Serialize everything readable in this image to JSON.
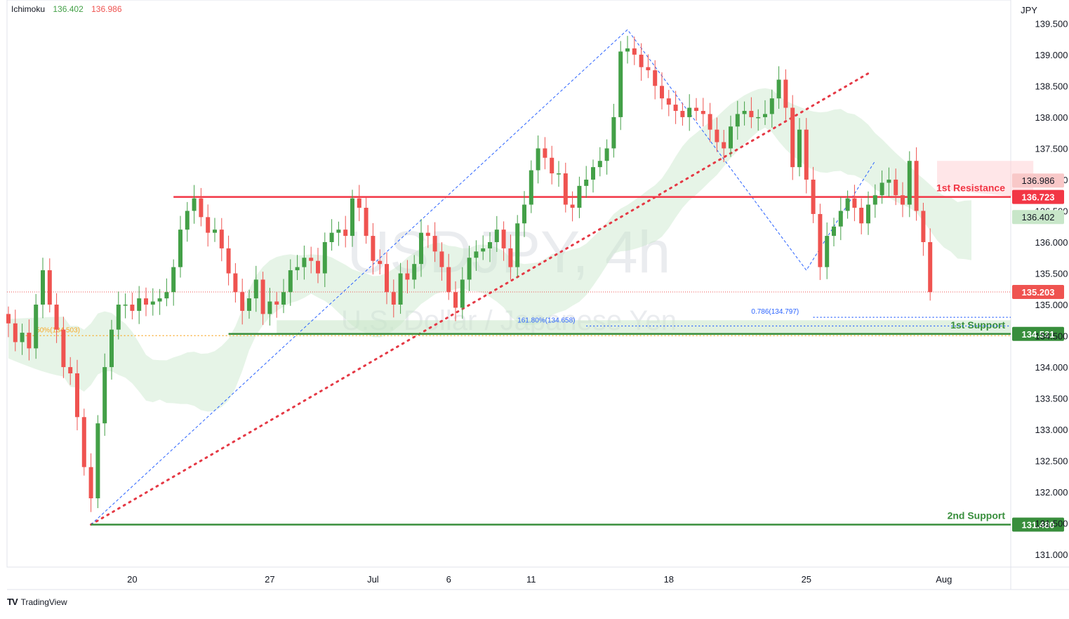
{
  "indicator": {
    "name": "Ichimoku",
    "value_a": "136.402",
    "value_b": "136.986"
  },
  "axis_currency": "JPY",
  "watermark": {
    "symbol": "USDJPY, 4h",
    "description": "U.S. Dollar / Japanese Yen"
  },
  "branding": "TradingView",
  "colors": {
    "bull": "#26a69a",
    "bull_candle": "#43a047",
    "bear": "#ef5350",
    "resistance": "#f23645",
    "support": "#388e3c",
    "cloud_green": "#c8e6c9",
    "cloud_red": "#ffcdd2",
    "trend": "#e53945",
    "fib": "#2962ff"
  },
  "chart_data": {
    "type": "candlestick",
    "ylim": [
      130.8,
      139.65
    ],
    "y_ticks": [
      "139.500",
      "139.000",
      "138.500",
      "138.000",
      "137.500",
      "137.000",
      "136.500",
      "136.000",
      "135.500",
      "135.000",
      "134.500",
      "134.000",
      "133.500",
      "133.000",
      "132.500",
      "132.000",
      "131.500",
      "131.000"
    ],
    "x_labels": [
      {
        "label": "20",
        "i": 18
      },
      {
        "label": "27",
        "i": 38
      },
      {
        "label": "Jul",
        "i": 53
      },
      {
        "label": "6",
        "i": 64
      },
      {
        "label": "11",
        "i": 76
      },
      {
        "label": "18",
        "i": 96
      },
      {
        "label": "25",
        "i": 116
      },
      {
        "label": "Aug",
        "i": 136
      }
    ],
    "closes": [
      134.7,
      134.4,
      134.55,
      134.3,
      135.0,
      135.55,
      135.0,
      134.6,
      134.0,
      133.9,
      133.2,
      132.4,
      131.9,
      133.1,
      134.0,
      134.6,
      135.0,
      135.0,
      134.9,
      135.1,
      135.0,
      135.05,
      135.1,
      135.2,
      135.6,
      136.2,
      136.5,
      136.7,
      136.4,
      136.15,
      136.2,
      135.9,
      135.5,
      135.2,
      134.9,
      135.1,
      135.4,
      134.85,
      135.05,
      135.0,
      135.2,
      135.55,
      135.6,
      135.75,
      135.7,
      135.5,
      136.0,
      136.15,
      136.2,
      136.1,
      136.7,
      136.55,
      136.1,
      135.7,
      135.65,
      135.2,
      135.0,
      135.5,
      135.4,
      135.65,
      136.15,
      136.1,
      135.85,
      135.6,
      135.2,
      134.95,
      135.4,
      135.75,
      135.85,
      135.9,
      136.0,
      136.2,
      135.9,
      135.6,
      136.3,
      136.6,
      137.15,
      137.5,
      137.35,
      137.1,
      137.1,
      136.6,
      136.55,
      136.9,
      137.0,
      137.2,
      137.3,
      137.5,
      138.0,
      139.05,
      139.1,
      139.0,
      138.8,
      138.75,
      138.5,
      138.3,
      138.2,
      138.1,
      138.0,
      138.15,
      138.1,
      138.05,
      137.8,
      137.6,
      137.5,
      137.85,
      138.05,
      138.1,
      138.0,
      138.0,
      138.05,
      138.3,
      138.6,
      138.15,
      137.2,
      137.8,
      137.0,
      136.45,
      135.6,
      136.1,
      136.25,
      136.5,
      136.7,
      136.55,
      136.3,
      136.6,
      136.75,
      136.95,
      137.0,
      136.75,
      136.6,
      137.3,
      136.5,
      136.0,
      135.2
    ],
    "fixed_levels": [
      {
        "label": "136.986",
        "value": 136.986,
        "kind": "cloud-red"
      },
      {
        "label": "136.402",
        "value": 136.402,
        "kind": "cloud-green"
      },
      {
        "label": "135.203",
        "value": 135.203,
        "kind": "price"
      }
    ],
    "key_levels": [
      {
        "name": "1st Resistance",
        "value": 136.723,
        "label": "136.723",
        "color": "#f23645"
      },
      {
        "name": "1st Support",
        "value": 134.531,
        "label": "134.531",
        "color": "#388e3c"
      },
      {
        "name": "2nd Support",
        "value": 131.48,
        "label": "131.480",
        "color": "#388e3c"
      }
    ],
    "fib_annotations": [
      {
        "text": "0.786(134.797)",
        "value": 134.797
      },
      {
        "text": "161.80%(134.658)",
        "value": 134.658
      },
      {
        "text": "50%(134.503)",
        "value": 134.503
      }
    ]
  }
}
